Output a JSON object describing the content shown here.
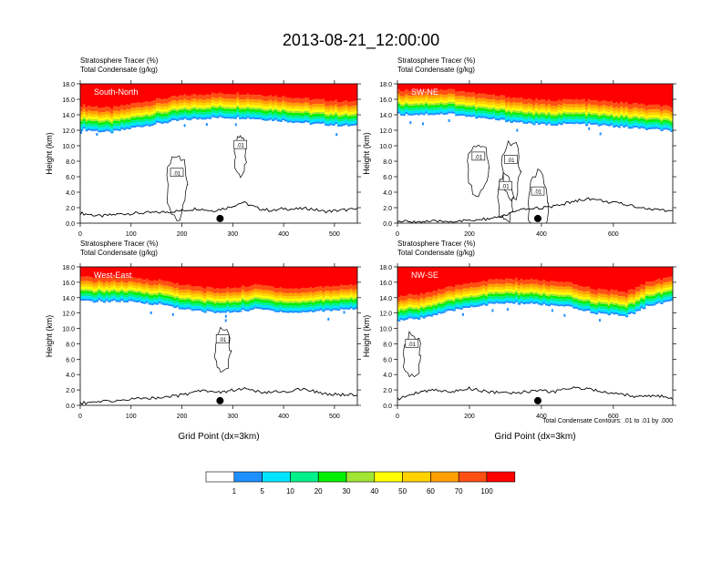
{
  "title": "2013-08-21_12:00:00",
  "palette": {
    "colors": [
      "#ffffff",
      "#1e90ff",
      "#00e5ff",
      "#00f08c",
      "#00f000",
      "#a0e632",
      "#ffff00",
      "#ffd200",
      "#ffa000",
      "#ff5014",
      "#ff0000"
    ],
    "labels": [
      "1",
      "5",
      "10",
      "20",
      "30",
      "40",
      "50",
      "60",
      "70",
      "100"
    ]
  },
  "footer_note": "Total Condensate Contours: .01 to .01 by .000",
  "chart_data": [
    {
      "type": "heatmap",
      "panel_label": "South-North",
      "title_line1": "Stratosphere Tracer   (%)",
      "title_line2": "Total Condensate   (g/kg)",
      "xlabel": "",
      "ylabel": "Height (km)",
      "xlim": [
        0,
        545
      ],
      "ylim": [
        0,
        18
      ],
      "xticks": [
        0,
        100,
        200,
        300,
        400,
        500
      ],
      "xtick_labels": [
        "0",
        "100",
        "200",
        "300",
        "400",
        "500"
      ],
      "yticks": [
        0,
        2,
        4,
        6,
        8,
        10,
        12,
        14,
        16,
        18
      ],
      "ytick_labels": [
        "0.0",
        "2.0",
        "4.0",
        "6.0",
        "8.0",
        "10.0",
        "12.0",
        "14.0",
        "16.0",
        "18.0"
      ],
      "tracer_base_km": [
        [
          0,
          12.1
        ],
        [
          60,
          11.7
        ],
        [
          120,
          12.5
        ],
        [
          200,
          13.3
        ],
        [
          260,
          13.6
        ],
        [
          320,
          13.6
        ],
        [
          400,
          13.2
        ],
        [
          460,
          12.8
        ],
        [
          545,
          12.5
        ]
      ],
      "terrain_km": [
        [
          0,
          1.3
        ],
        [
          40,
          0.9
        ],
        [
          80,
          1.2
        ],
        [
          120,
          1.3
        ],
        [
          160,
          1.4
        ],
        [
          200,
          1.6
        ],
        [
          230,
          1.9
        ],
        [
          260,
          1.6
        ],
        [
          290,
          2.0
        ],
        [
          320,
          2.7
        ],
        [
          350,
          1.9
        ],
        [
          380,
          1.6
        ],
        [
          400,
          1.9
        ],
        [
          420,
          1.8
        ],
        [
          450,
          1.9
        ],
        [
          480,
          1.5
        ],
        [
          520,
          1.7
        ],
        [
          545,
          1.8
        ]
      ],
      "marker_x": 275,
      "contour_labels": [
        {
          "text": ".01",
          "x": 315,
          "y": 10.1
        },
        {
          "text": ".01",
          "x": 190,
          "y": 6.5
        }
      ]
    },
    {
      "type": "heatmap",
      "panel_label": "SW-NE",
      "title_line1": "Stratosphere Tracer   (%)",
      "title_line2": "Total Condensate   (g/kg)",
      "xlabel": "",
      "ylabel": "Height (km)",
      "xlim": [
        0,
        765
      ],
      "ylim": [
        0,
        18
      ],
      "xticks": [
        0,
        200,
        400,
        600
      ],
      "xtick_labels": [
        "0",
        "200",
        "400",
        "600"
      ],
      "yticks": [
        0,
        2,
        4,
        6,
        8,
        10,
        12,
        14,
        16,
        18
      ],
      "ytick_labels": [
        "0.0",
        "2.0",
        "4.0",
        "6.0",
        "8.0",
        "10.0",
        "12.0",
        "14.0",
        "16.0",
        "18.0"
      ],
      "tracer_base_km": [
        [
          0,
          14.0
        ],
        [
          150,
          14.1
        ],
        [
          220,
          13.6
        ],
        [
          320,
          13.1
        ],
        [
          400,
          12.7
        ],
        [
          500,
          12.8
        ],
        [
          600,
          12.5
        ],
        [
          700,
          12.1
        ],
        [
          765,
          11.9
        ]
      ],
      "terrain_km": [
        [
          0,
          0.2
        ],
        [
          100,
          0.2
        ],
        [
          200,
          0.3
        ],
        [
          280,
          0.7
        ],
        [
          320,
          1.4
        ],
        [
          370,
          1.9
        ],
        [
          430,
          2.1
        ],
        [
          480,
          2.7
        ],
        [
          530,
          3.2
        ],
        [
          580,
          2.8
        ],
        [
          620,
          2.5
        ],
        [
          660,
          2.2
        ],
        [
          700,
          1.8
        ],
        [
          765,
          1.6
        ]
      ],
      "marker_x": 390,
      "contour_labels": [
        {
          "text": ".01",
          "x": 225,
          "y": 8.6
        },
        {
          "text": ".01",
          "x": 315,
          "y": 8.2
        },
        {
          "text": ".01",
          "x": 300,
          "y": 4.8
        },
        {
          "text": ".01",
          "x": 390,
          "y": 4.1
        }
      ]
    },
    {
      "type": "heatmap",
      "panel_label": "West-East",
      "title_line1": "Stratosphere Tracer   (%)",
      "title_line2": "Total Condensate   (g/kg)",
      "xlabel": "Grid Point (dx=3km)",
      "ylabel": "Height (km)",
      "xlim": [
        0,
        545
      ],
      "ylim": [
        0,
        18
      ],
      "xticks": [
        0,
        100,
        200,
        300,
        400,
        500
      ],
      "xtick_labels": [
        "0",
        "100",
        "200",
        "300",
        "400",
        "500"
      ],
      "yticks": [
        0,
        2,
        4,
        6,
        8,
        10,
        12,
        14,
        16,
        18
      ],
      "ytick_labels": [
        "0.0",
        "2.0",
        "4.0",
        "6.0",
        "8.0",
        "10.0",
        "12.0",
        "14.0",
        "16.0",
        "18.0"
      ],
      "tracer_base_km": [
        [
          0,
          13.5
        ],
        [
          80,
          13.5
        ],
        [
          160,
          13.1
        ],
        [
          220,
          12.3
        ],
        [
          280,
          12.0
        ],
        [
          350,
          12.5
        ],
        [
          420,
          12.0
        ],
        [
          480,
          12.3
        ],
        [
          545,
          12.6
        ]
      ],
      "terrain_km": [
        [
          0,
          0.3
        ],
        [
          50,
          0.5
        ],
        [
          100,
          0.8
        ],
        [
          150,
          1.0
        ],
        [
          200,
          1.3
        ],
        [
          240,
          2.0
        ],
        [
          280,
          1.7
        ],
        [
          320,
          2.2
        ],
        [
          360,
          1.6
        ],
        [
          400,
          1.8
        ],
        [
          440,
          2.1
        ],
        [
          480,
          1.5
        ],
        [
          545,
          1.3
        ]
      ],
      "marker_x": 275,
      "contour_labels": [
        {
          "text": ".01",
          "x": 280,
          "y": 8.6
        }
      ]
    },
    {
      "type": "heatmap",
      "panel_label": "NW-SE",
      "title_line1": "Stratosphere Tracer   (%)",
      "title_line2": "Total Condensate   (g/kg)",
      "xlabel": "Grid Point (dx=3km)",
      "ylabel": "Height (km)",
      "xlim": [
        0,
        765
      ],
      "ylim": [
        0,
        18
      ],
      "xticks": [
        0,
        200,
        400,
        600
      ],
      "xtick_labels": [
        "0",
        "200",
        "400",
        "600"
      ],
      "yticks": [
        0,
        2,
        4,
        6,
        8,
        10,
        12,
        14,
        16,
        18
      ],
      "ytick_labels": [
        "0.0",
        "2.0",
        "4.0",
        "6.0",
        "8.0",
        "10.0",
        "12.0",
        "14.0",
        "16.0",
        "18.0"
      ],
      "tracer_base_km": [
        [
          0,
          11.0
        ],
        [
          60,
          11.3
        ],
        [
          120,
          11.9
        ],
        [
          200,
          12.8
        ],
        [
          300,
          13.3
        ],
        [
          400,
          13.1
        ],
        [
          480,
          12.7
        ],
        [
          560,
          11.9
        ],
        [
          640,
          11.6
        ],
        [
          700,
          13.0
        ],
        [
          765,
          13.6
        ]
      ],
      "terrain_km": [
        [
          0,
          0.8
        ],
        [
          50,
          1.6
        ],
        [
          100,
          2.0
        ],
        [
          150,
          1.8
        ],
        [
          200,
          2.2
        ],
        [
          260,
          1.7
        ],
        [
          320,
          1.6
        ],
        [
          380,
          1.9
        ],
        [
          440,
          1.8
        ],
        [
          500,
          2.3
        ],
        [
          540,
          2.0
        ],
        [
          600,
          1.6
        ],
        [
          660,
          1.2
        ],
        [
          720,
          1.3
        ],
        [
          765,
          0.9
        ]
      ],
      "marker_x": 390,
      "contour_labels": [
        {
          "text": ".01",
          "x": 40,
          "y": 8.0
        }
      ]
    }
  ]
}
